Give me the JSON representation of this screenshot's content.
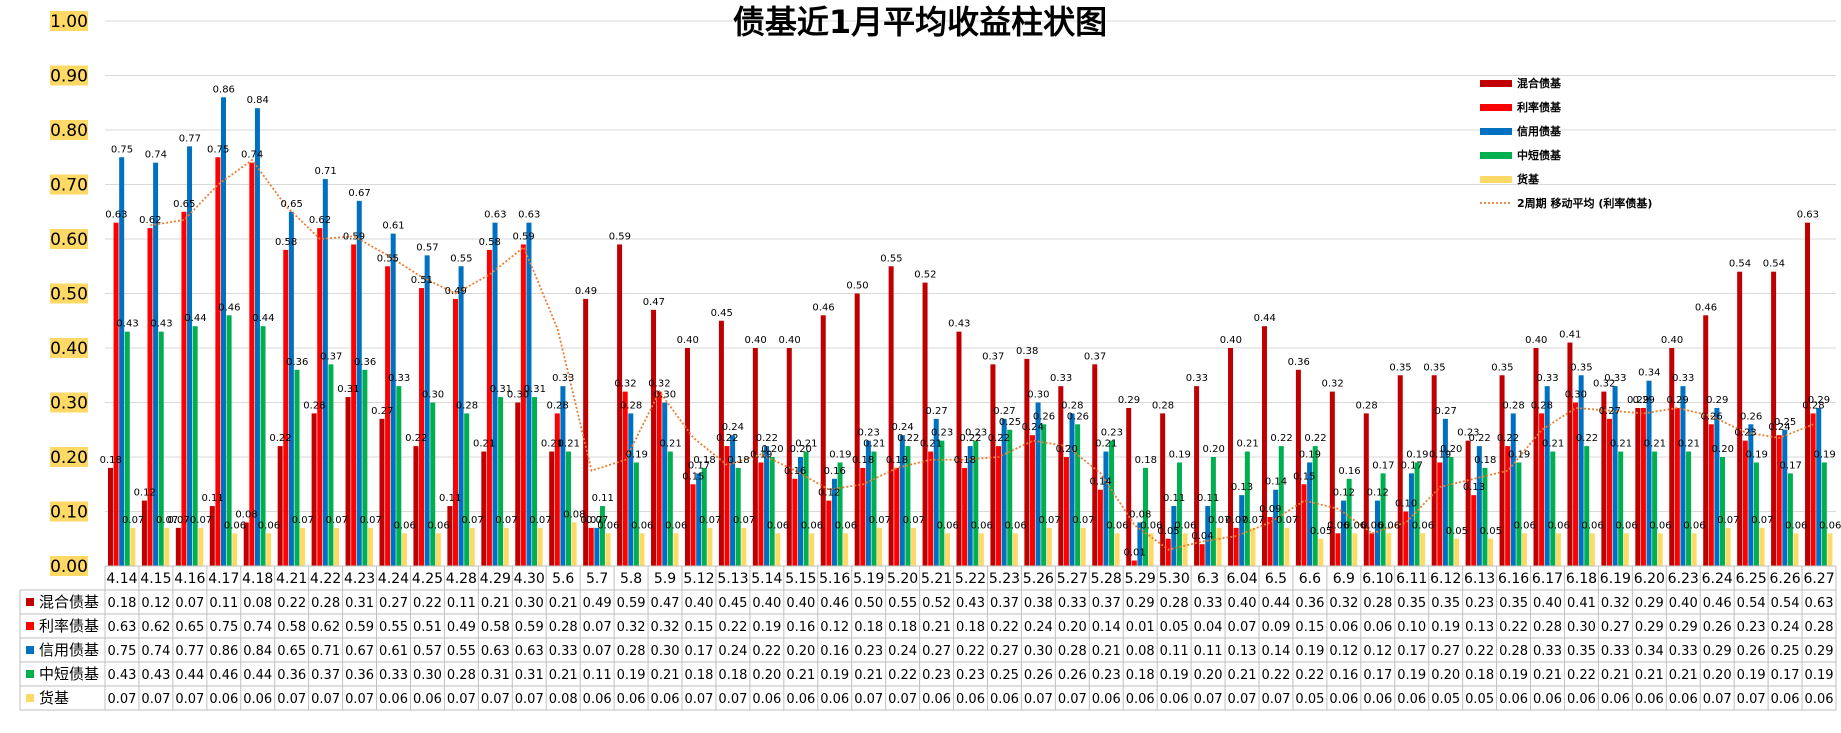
{
  "chart_data": {
    "type": "bar",
    "title": "债基近1月平均收益柱状图",
    "ylim": [
      0,
      1.0
    ],
    "yticks": [
      "0.00",
      "0.10",
      "0.20",
      "0.30",
      "0.40",
      "0.50",
      "0.60",
      "0.70",
      "0.80",
      "0.90",
      "1.00"
    ],
    "grid": true,
    "legend_position": "top-right",
    "categories": [
      "4.14",
      "4.15",
      "4.16",
      "4.17",
      "4.18",
      "4.21",
      "4.22",
      "4.23",
      "4.24",
      "4.25",
      "4.28",
      "4.29",
      "4.30",
      "5.6",
      "5.7",
      "5.8",
      "5.9",
      "5.12",
      "5.13",
      "5.14",
      "5.15",
      "5.16",
      "5.19",
      "5.20",
      "5.21",
      "5.22",
      "5.23",
      "5.26",
      "5.27",
      "5.28",
      "5.29",
      "5.30",
      "6.3",
      "6.04",
      "6.5",
      "6.6",
      "6.9",
      "6.10",
      "6.11",
      "6.12",
      "6.13",
      "6.16",
      "6.17",
      "6.18",
      "6.19",
      "6.20",
      "6.23",
      "6.24",
      "6.25",
      "6.26",
      "6.27"
    ],
    "series": [
      {
        "name": "混合债基",
        "color": "#C00000",
        "values": [
          0.18,
          0.12,
          0.07,
          0.11,
          0.08,
          0.22,
          0.28,
          0.31,
          0.27,
          0.22,
          0.11,
          0.21,
          0.3,
          0.21,
          0.49,
          0.59,
          0.47,
          0.4,
          0.45,
          0.4,
          0.4,
          0.46,
          0.5,
          0.55,
          0.52,
          0.43,
          0.37,
          0.38,
          0.33,
          0.37,
          0.29,
          0.28,
          0.33,
          0.4,
          0.44,
          0.36,
          0.32,
          0.28,
          0.35,
          0.35,
          0.23,
          0.35,
          0.4,
          0.41,
          0.32,
          0.29,
          0.4,
          0.46,
          0.54,
          0.54,
          0.63
        ]
      },
      {
        "name": "利率债基",
        "color": "#FF0000",
        "values": [
          0.63,
          0.62,
          0.65,
          0.75,
          0.74,
          0.58,
          0.62,
          0.59,
          0.55,
          0.51,
          0.49,
          0.58,
          0.59,
          0.28,
          0.07,
          0.32,
          0.32,
          0.15,
          0.22,
          0.19,
          0.16,
          0.12,
          0.18,
          0.18,
          0.21,
          0.18,
          0.22,
          0.24,
          0.2,
          0.14,
          0.01,
          0.05,
          0.04,
          0.07,
          0.09,
          0.15,
          0.06,
          0.06,
          0.1,
          0.19,
          0.13,
          0.22,
          0.28,
          0.3,
          0.27,
          0.29,
          0.29,
          0.26,
          0.23,
          0.24,
          0.28
        ]
      },
      {
        "name": "信用债基",
        "color": "#0070C0",
        "values": [
          0.75,
          0.74,
          0.77,
          0.86,
          0.84,
          0.65,
          0.71,
          0.67,
          0.61,
          0.57,
          0.55,
          0.63,
          0.63,
          0.33,
          0.07,
          0.28,
          0.3,
          0.17,
          0.24,
          0.22,
          0.2,
          0.16,
          0.23,
          0.24,
          0.27,
          0.22,
          0.27,
          0.3,
          0.28,
          0.21,
          0.08,
          0.11,
          0.11,
          0.13,
          0.14,
          0.19,
          0.12,
          0.12,
          0.17,
          0.27,
          0.22,
          0.28,
          0.33,
          0.35,
          0.33,
          0.34,
          0.33,
          0.29,
          0.26,
          0.25,
          0.29
        ]
      },
      {
        "name": "中短债基",
        "color": "#00B050",
        "values": [
          0.43,
          0.43,
          0.44,
          0.46,
          0.44,
          0.36,
          0.37,
          0.36,
          0.33,
          0.3,
          0.28,
          0.31,
          0.31,
          0.21,
          0.11,
          0.19,
          0.21,
          0.18,
          0.18,
          0.2,
          0.21,
          0.19,
          0.21,
          0.22,
          0.23,
          0.23,
          0.25,
          0.26,
          0.26,
          0.23,
          0.18,
          0.19,
          0.2,
          0.21,
          0.22,
          0.22,
          0.16,
          0.17,
          0.19,
          0.2,
          0.18,
          0.19,
          0.21,
          0.22,
          0.21,
          0.21,
          0.21,
          0.2,
          0.19,
          0.17,
          0.19
        ]
      },
      {
        "name": "货基",
        "color": "#FFD966",
        "values": [
          0.07,
          0.07,
          0.07,
          0.06,
          0.06,
          0.07,
          0.07,
          0.07,
          0.06,
          0.06,
          0.07,
          0.07,
          0.07,
          0.08,
          0.06,
          0.06,
          0.06,
          0.07,
          0.07,
          0.06,
          0.06,
          0.06,
          0.07,
          0.07,
          0.06,
          0.06,
          0.06,
          0.07,
          0.07,
          0.06,
          0.06,
          0.06,
          0.07,
          0.07,
          0.07,
          0.05,
          0.06,
          0.06,
          0.06,
          0.05,
          0.05,
          0.06,
          0.06,
          0.06,
          0.06,
          0.06,
          0.06,
          0.07,
          0.07,
          0.06,
          0.06
        ]
      }
    ],
    "trendline": {
      "name": "2周期 移动平均 (利率债基)",
      "color": "#ED7D31",
      "base_series": 1,
      "period": 2
    }
  }
}
